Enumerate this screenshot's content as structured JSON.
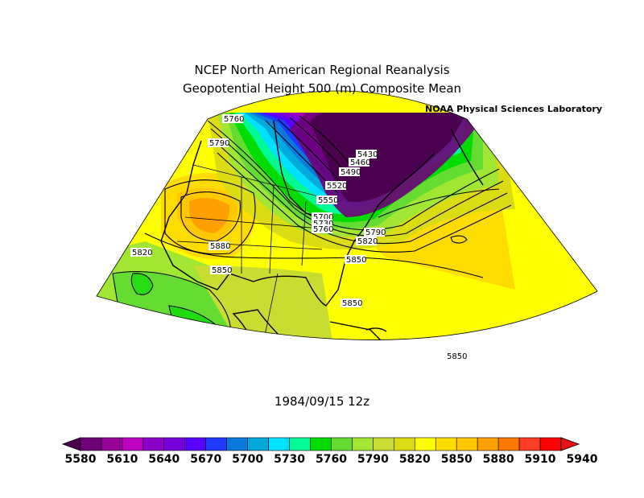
{
  "header": {
    "title_line1": "NCEP North American Regional Reanalysis",
    "title_line2": "Geopotential Height 500 (m) Composite Mean",
    "lab": "NOAA Physical Sciences Laboratory"
  },
  "map": {
    "valid_time": "1984/09/15 12z",
    "contour_labels": [
      "5760",
      "5790",
      "5430",
      "5460",
      "5490",
      "5520",
      "5550",
      "5700",
      "5730",
      "5760",
      "5790",
      "5820",
      "5850",
      "5880",
      "5820",
      "5850",
      "5850",
      "5850"
    ]
  },
  "colorbar": {
    "ticks": [
      "5580",
      "5610",
      "5640",
      "5670",
      "5700",
      "5730",
      "5760",
      "5790",
      "5820",
      "5850",
      "5880",
      "5910",
      "5940"
    ],
    "colors": [
      "#4b0050",
      "#6e0078",
      "#960096",
      "#be00be",
      "#8c00c8",
      "#7800dc",
      "#5a00ff",
      "#1e3cff",
      "#0a78dc",
      "#00aadc",
      "#00e1ff",
      "#00fa96",
      "#00dc00",
      "#64dc32",
      "#a0e632",
      "#c8dc32",
      "#dcdc14",
      "#ffff00",
      "#ffdc00",
      "#ffc800",
      "#ffa000",
      "#ff7800",
      "#ff3c28",
      "#ff0000",
      "#e61414"
    ]
  },
  "chart_data": {
    "type": "heatmap",
    "title": "NCEP North American Regional Reanalysis",
    "subtitle": "Geopotential Height 500 (m) Composite Mean",
    "field_units": "m",
    "colorbar_range": [
      5580,
      5940
    ],
    "colorbar_interval": 15,
    "contour_levels_labeled": [
      5430,
      5460,
      5490,
      5520,
      5550,
      5700,
      5730,
      5760,
      5790,
      5820,
      5850,
      5880
    ]
  }
}
